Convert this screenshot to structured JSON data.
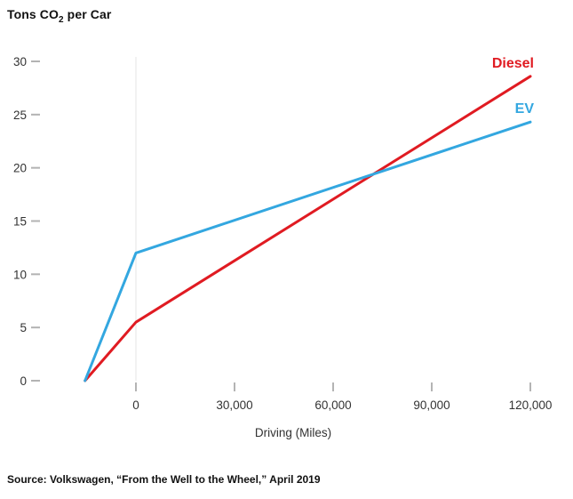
{
  "title": {
    "before_sub": "Tons CO",
    "sub": "2",
    "after_sub": " per Car"
  },
  "source": "Source: Volkswagen, “From the Well to the Wheel,” April 2019",
  "colors": {
    "diesel_red": "#e01b22",
    "ev_blue": "#33a7e0",
    "tick": "#aaaaaa",
    "gridline": "#e4e4e4",
    "axis_text": "#333333"
  },
  "chart_data": {
    "type": "line",
    "title": "Tons CO2 per Car",
    "xlabel": "Driving (Miles)",
    "ylabel": "Tons CO2 per Car",
    "xlim": [
      -15500,
      120000
    ],
    "ylim": [
      0,
      30
    ],
    "grid": "single light vertical gridline at x = 0 miles only; no axis frame lines",
    "legend_position": "labels at right ends of lines",
    "x_ticks": [
      {
        "value": 0,
        "label": "0"
      },
      {
        "value": 30000,
        "label": "30,000"
      },
      {
        "value": 60000,
        "label": "60,000"
      },
      {
        "value": 90000,
        "label": "90,000"
      },
      {
        "value": 120000,
        "label": "120,000"
      }
    ],
    "y_ticks": [
      {
        "value": 0,
        "label": "0"
      },
      {
        "value": 5,
        "label": "5"
      },
      {
        "value": 10,
        "label": "10"
      },
      {
        "value": 15,
        "label": "15"
      },
      {
        "value": 20,
        "label": "20"
      },
      {
        "value": 25,
        "label": "25"
      },
      {
        "value": 30,
        "label": "30"
      }
    ],
    "series": [
      {
        "name": "Diesel",
        "color": "#e01b22",
        "points": [
          [
            -15500,
            0
          ],
          [
            0,
            5.5
          ],
          [
            120000,
            28.6
          ]
        ]
      },
      {
        "name": "EV",
        "color": "#33a7e0",
        "points": [
          [
            -15500,
            0
          ],
          [
            0,
            12
          ],
          [
            120000,
            24.3
          ]
        ]
      }
    ]
  }
}
